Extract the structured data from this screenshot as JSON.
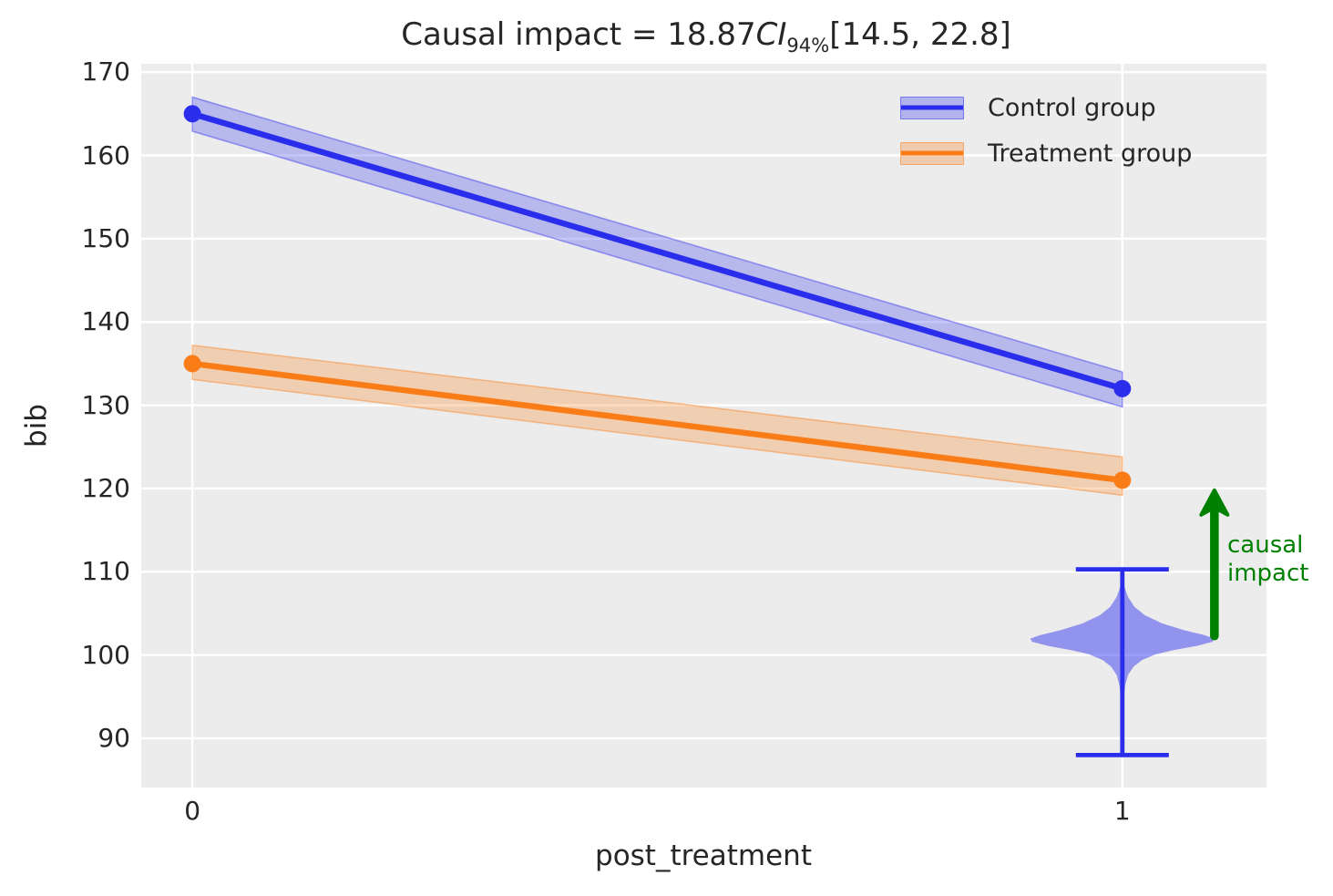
{
  "title": {
    "prefix": "Causal impact = ",
    "value": "18.87",
    "ci_symbol": "CI",
    "ci_sub": "94%",
    "interval": "[14.5, 22.8]"
  },
  "axes": {
    "xlabel": "post_treatment",
    "ylabel": "bib"
  },
  "legend": {
    "items": [
      {
        "label": "Control group",
        "color": "#2a2eec"
      },
      {
        "label": "Treatment group",
        "color": "#fa7c17"
      }
    ]
  },
  "annotation": {
    "line1": "causal",
    "line2": "impact",
    "color": "#008000"
  },
  "colors": {
    "axes_background": "#ececec",
    "grid": "#ffffff",
    "text": "#262626",
    "control": "#2a2eec",
    "treatment": "#fa7c17",
    "impact_green": "#008000"
  },
  "chart_data": {
    "type": "line",
    "title": "Causal impact = 18.87 CI 94% [14.5, 22.8]",
    "xlabel": "post_treatment",
    "ylabel": "bib",
    "xlim": [
      -0.055,
      1.155
    ],
    "ylim": [
      84.1,
      171.0
    ],
    "xticks": [
      0,
      1
    ],
    "yticks": [
      90,
      100,
      110,
      120,
      130,
      140,
      150,
      160,
      170
    ],
    "grid": true,
    "legend_position": "upper right",
    "series": [
      {
        "name": "Control group",
        "color": "#2a2eec",
        "x": [
          0,
          1
        ],
        "y": [
          165,
          132
        ],
        "band_upper": [
          167.0,
          134.0
        ],
        "band_lower": [
          162.9,
          129.8
        ]
      },
      {
        "name": "Treatment group",
        "color": "#fa7c17",
        "x": [
          0,
          1
        ],
        "y": [
          135,
          121
        ],
        "band_upper": [
          137.2,
          123.8
        ],
        "band_lower": [
          133.1,
          119.2
        ]
      }
    ],
    "counterfactual_violin": {
      "x": 1.0,
      "color": "#2a2eec",
      "whisker_low": 88.0,
      "whisker_high": 110.3,
      "cap_halfwidth": 0.05,
      "center": 101.9,
      "profile": [
        [
          108.3,
          0.002
        ],
        [
          107.0,
          0.006
        ],
        [
          105.8,
          0.013
        ],
        [
          104.8,
          0.024
        ],
        [
          103.8,
          0.043
        ],
        [
          103.0,
          0.066
        ],
        [
          102.4,
          0.088
        ],
        [
          102.0,
          0.099
        ],
        [
          101.6,
          0.097
        ],
        [
          101.1,
          0.08
        ],
        [
          100.6,
          0.055
        ],
        [
          100.1,
          0.036
        ],
        [
          99.4,
          0.021
        ],
        [
          98.6,
          0.012
        ],
        [
          97.6,
          0.006
        ],
        [
          96.3,
          0.003
        ],
        [
          95.2,
          0.002
        ]
      ]
    },
    "impact_arrow": {
      "x": 1.099,
      "y_from": 102.3,
      "y_to": 119.8,
      "color": "#008000",
      "label": "causal impact",
      "impact_value": 18.87,
      "ci_level": "94%",
      "ci_interval": [
        14.5,
        22.8
      ]
    }
  }
}
